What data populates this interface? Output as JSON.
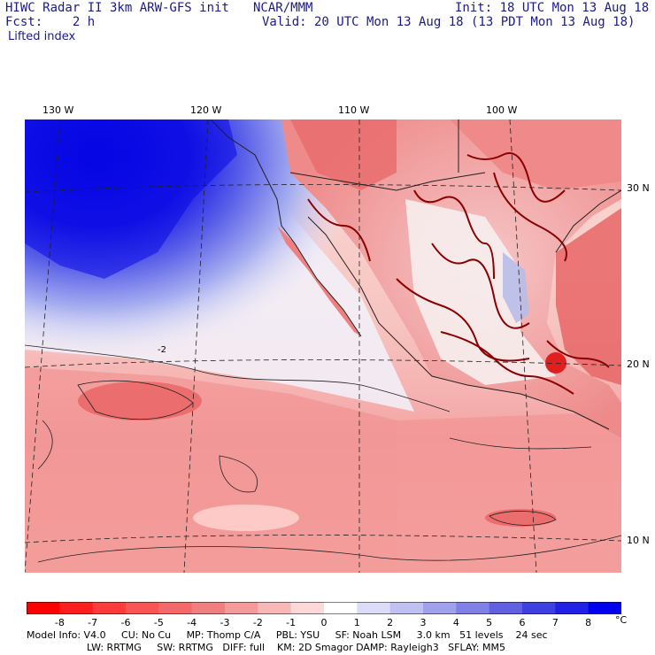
{
  "header": {
    "line1_left": "HIWC Radar II 3km ARW-GFS init",
    "line1_mid": "NCAR/MMM",
    "line1_right": "Init: 18 UTC Mon 13 Aug 18",
    "line2_left": "Fcst:    2 h",
    "line2_right": "Valid: 20 UTC Mon 13 Aug 18 (13 PDT Mon 13 Aug 18)",
    "field": "Lifted index"
  },
  "map": {
    "lon_labels": [
      "130 W",
      "120 W",
      "110 W",
      "100 W"
    ],
    "lat_labels": [
      "30 N",
      "20 N",
      "10 N"
    ],
    "contour_label": "-2",
    "colors": {
      "ocean_warm": "#f4a6a6",
      "strong_neg": "#e85a5a",
      "deep_red": "#8b0000",
      "cold_blue": "#0000e0",
      "light_blue": "#c8cdf5",
      "near_zero": "#fbe0dc"
    }
  },
  "colorbar": {
    "ticks": [
      "-8",
      "-7",
      "-6",
      "-5",
      "-4",
      "-3",
      "-2",
      "-1",
      "0",
      "1",
      "2",
      "3",
      "4",
      "5",
      "6",
      "7",
      "8"
    ],
    "unit": "°C",
    "colors": [
      "#ff0000",
      "#ff1e1e",
      "#ff3c3c",
      "#fa5555",
      "#f46a6a",
      "#f08080",
      "#f49a9a",
      "#f8b8b8",
      "#fcd8d8",
      "#ffffff",
      "#dcdcf8",
      "#c0c0f2",
      "#a0a0ec",
      "#8080e6",
      "#6060e0",
      "#4040e0",
      "#2020e6",
      "#0000f0"
    ]
  },
  "footer": {
    "line1": "Model Info: V4.0     CU: No Cu     MP: Thomp C/A     PBL: YSU     SF: Noah LSM     3.0 km   51 levels    24 sec",
    "line2": "LW: RRTMG     SW: RRTMG   DIFF: full    KM: 2D Smagor DAMP: Rayleigh3   SFLAY: MM5"
  }
}
